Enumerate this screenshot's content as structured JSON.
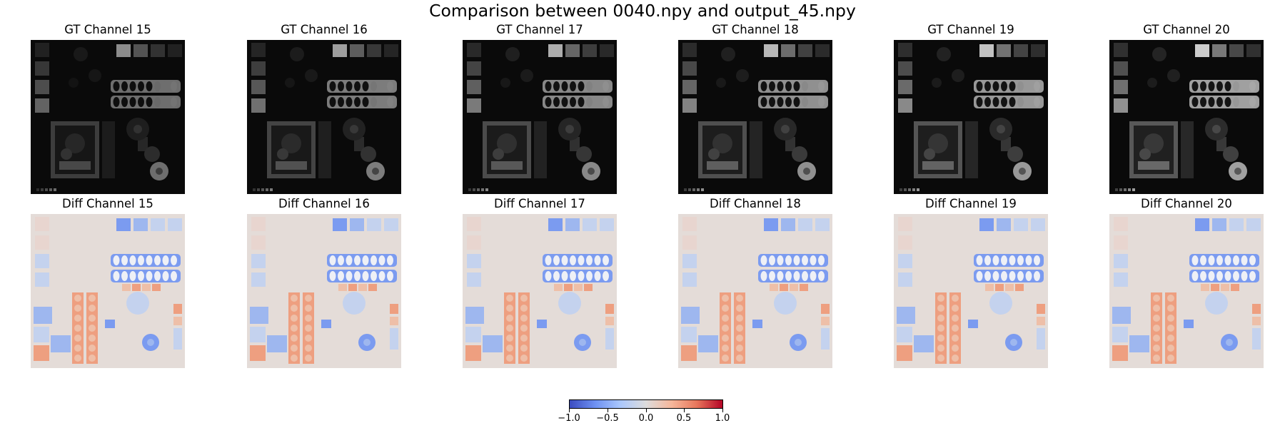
{
  "title": "Comparison between 0040.npy and output_45.npy",
  "gt_panels": [
    {
      "title": "GT Channel 15",
      "level": 0.55
    },
    {
      "title": "GT Channel 16",
      "level": 0.62
    },
    {
      "title": "GT Channel 17",
      "level": 0.68
    },
    {
      "title": "GT Channel 18",
      "level": 0.72
    },
    {
      "title": "GT Channel 19",
      "level": 0.76
    },
    {
      "title": "GT Channel 20",
      "level": 0.8
    }
  ],
  "diff_panels": [
    {
      "title": "Diff Channel 15"
    },
    {
      "title": "Diff Channel 16"
    },
    {
      "title": "Diff Channel 17"
    },
    {
      "title": "Diff Channel 18"
    },
    {
      "title": "Diff Channel 19"
    },
    {
      "title": "Diff Channel 20"
    }
  ],
  "colorbar": {
    "ticks": [
      "−1.0",
      "−0.5",
      "0.0",
      "0.5",
      "1.0"
    ],
    "range": [
      -1.0,
      1.0
    ],
    "colormap": "coolwarm",
    "colors": [
      "#3b4cc0",
      "#dddcdc",
      "#b40426"
    ]
  }
}
